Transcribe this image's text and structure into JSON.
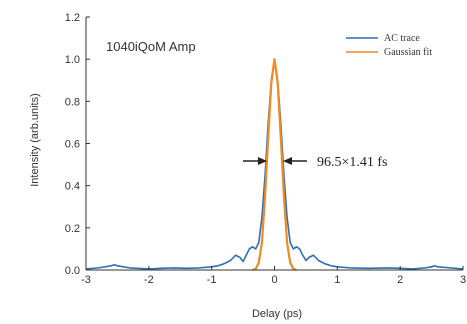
{
  "chart_data": {
    "type": "line",
    "title": "1040iQoM Amp",
    "xlabel": "Delay (ps)",
    "ylabel": "Intensity (arb.units)",
    "xlim": [
      -3,
      3
    ],
    "ylim": [
      0,
      1.2
    ],
    "x_ticks": [
      "-3",
      "-2",
      "-1",
      "0",
      "1",
      "2",
      "3"
    ],
    "y_ticks": [
      "0.0",
      "0.2",
      "0.4",
      "0.6",
      "0.8",
      "1.0",
      "1.2"
    ],
    "grid": false,
    "legend_position": "top-right",
    "annotation": "96.5×1.41 fs",
    "series": [
      {
        "name": "AC trace",
        "color": "#2f6db5",
        "x": [
          -3.0,
          -2.8,
          -2.6,
          -2.55,
          -2.5,
          -2.3,
          -2.0,
          -1.8,
          -1.6,
          -1.4,
          -1.2,
          -1.0,
          -0.9,
          -0.8,
          -0.7,
          -0.62,
          -0.55,
          -0.5,
          -0.45,
          -0.4,
          -0.35,
          -0.3,
          -0.25,
          -0.2,
          -0.15,
          -0.1,
          -0.05,
          0.0,
          0.05,
          0.1,
          0.15,
          0.2,
          0.25,
          0.3,
          0.35,
          0.4,
          0.45,
          0.5,
          0.55,
          0.62,
          0.7,
          0.8,
          0.9,
          1.0,
          1.2,
          1.5,
          1.8,
          2.0,
          2.2,
          2.4,
          2.5,
          2.55,
          2.6,
          2.8,
          3.0
        ],
        "y": [
          0.005,
          0.01,
          0.02,
          0.025,
          0.02,
          0.01,
          0.005,
          0.008,
          0.01,
          0.008,
          0.01,
          0.015,
          0.02,
          0.03,
          0.045,
          0.07,
          0.06,
          0.04,
          0.07,
          0.1,
          0.11,
          0.1,
          0.13,
          0.25,
          0.45,
          0.7,
          0.9,
          1.0,
          0.9,
          0.7,
          0.45,
          0.25,
          0.13,
          0.1,
          0.11,
          0.1,
          0.07,
          0.045,
          0.06,
          0.07,
          0.045,
          0.03,
          0.02,
          0.015,
          0.01,
          0.008,
          0.01,
          0.008,
          0.005,
          0.01,
          0.015,
          0.02,
          0.015,
          0.01,
          0.005
        ]
      },
      {
        "name": "Gaussian fit",
        "color": "#f08a24",
        "x": [
          -0.35,
          -0.3,
          -0.25,
          -0.2,
          -0.15,
          -0.1,
          -0.05,
          0.0,
          0.05,
          0.1,
          0.15,
          0.2,
          0.25,
          0.3,
          0.35
        ],
        "y": [
          0.0,
          0.005,
          0.035,
          0.13,
          0.35,
          0.63,
          0.89,
          1.0,
          0.89,
          0.63,
          0.35,
          0.13,
          0.035,
          0.005,
          0.0
        ]
      }
    ]
  }
}
